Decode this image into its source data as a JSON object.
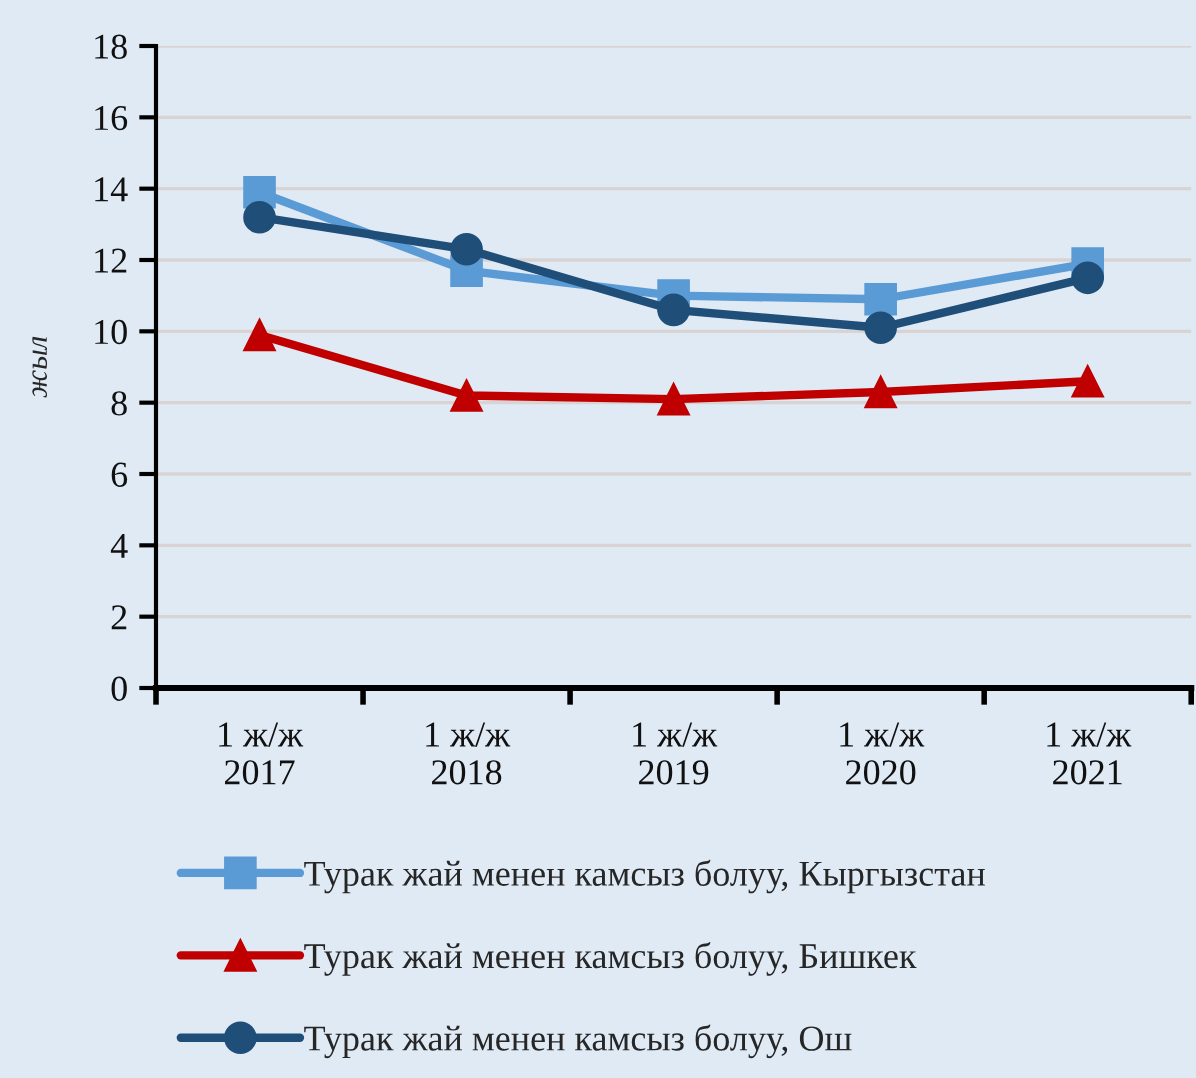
{
  "chart_data": {
    "type": "line",
    "ylabel": "жыл",
    "categories": [
      "1 ж/ж\n2017",
      "1 ж/ж\n2018",
      "1 ж/ж\n2019",
      "1 ж/ж\n2020",
      "1 ж/ж\n2021"
    ],
    "series": [
      {
        "name": "Турак жай менен камсыз болуу, Кыргызстан",
        "color": "#5b9bd5",
        "marker": "square",
        "values": [
          13.9,
          11.7,
          11.0,
          10.9,
          11.9
        ]
      },
      {
        "name": "Турак жай менен камсыз болуу, Бишкек",
        "color": "#c00000",
        "marker": "triangle",
        "values": [
          9.9,
          8.2,
          8.1,
          8.3,
          8.6
        ]
      },
      {
        "name": "Турак жай менен камсыз болуу, Ош",
        "color": "#1f4e79",
        "marker": "circle",
        "values": [
          13.2,
          12.3,
          10.6,
          10.1,
          11.5
        ]
      }
    ],
    "ylim": [
      0,
      18
    ],
    "yticks": [
      0,
      2,
      4,
      6,
      8,
      10,
      12,
      14,
      16,
      18
    ],
    "grid": "y",
    "legend": "bottom",
    "line_style": "solid"
  }
}
